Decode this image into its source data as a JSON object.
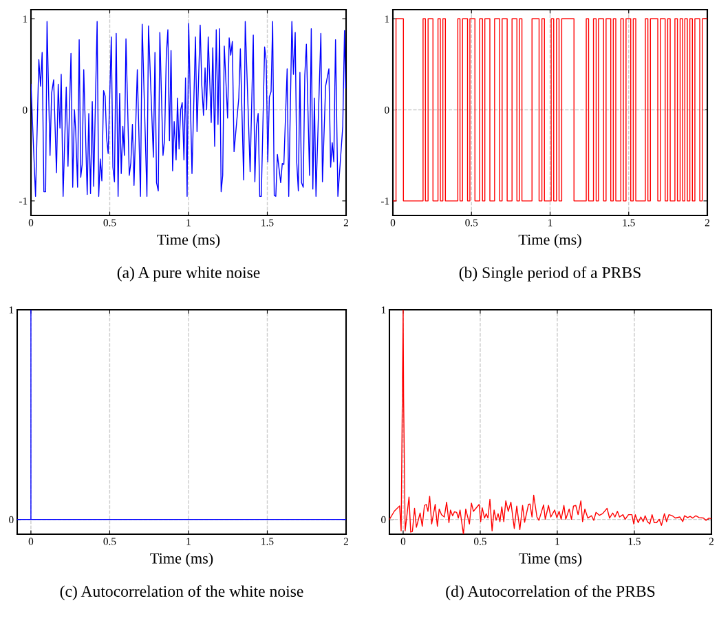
{
  "chart_data": [
    {
      "type": "line",
      "title": "(a) A pure white noise",
      "xlabel": "Time (ms)",
      "color": "#0000ff",
      "xlim": [
        0,
        2
      ],
      "ylim": [
        -1.16,
        1.1
      ],
      "xticks": [
        0,
        0.5,
        1,
        1.5,
        2
      ],
      "yticks": [
        -1,
        0,
        1
      ],
      "grid": "x",
      "ref_lines": [
        {
          "axis": "y",
          "value": 0,
          "color": "#cccccc",
          "line_style": "dashed"
        }
      ],
      "x": [
        0,
        0.029,
        0.05,
        0.061,
        0.071,
        0.082,
        0.093,
        0.102,
        0.121,
        0.131,
        0.144,
        0.162,
        0.173,
        0.184,
        0.192,
        0.204,
        0.224,
        0.235,
        0.254,
        0.265,
        0.276,
        0.284,
        0.296,
        0.306,
        0.316,
        0.325,
        0.335,
        0.357,
        0.367,
        0.378,
        0.389,
        0.398,
        0.42,
        0.43,
        0.44,
        0.45,
        0.461,
        0.471,
        0.48,
        0.49,
        0.51,
        0.52,
        0.53,
        0.541,
        0.553,
        0.563,
        0.573,
        0.583,
        0.593,
        0.603,
        0.624,
        0.634,
        0.644,
        0.654,
        0.675,
        0.695,
        0.706,
        0.736,
        0.746,
        0.777,
        0.787,
        0.797,
        0.808,
        0.818,
        0.838,
        0.848,
        0.859,
        0.869,
        0.879,
        0.889,
        0.899,
        0.909,
        0.921,
        0.93,
        0.94,
        0.95,
        0.96,
        0.971,
        0.981,
        0.991,
        1.001,
        1.022,
        1.044,
        1.054,
        1.074,
        1.084,
        1.095,
        1.105,
        1.115,
        1.125,
        1.144,
        1.154,
        1.166,
        1.176,
        1.187,
        1.197,
        1.207,
        1.217,
        1.227,
        1.248,
        1.258,
        1.268,
        1.278,
        1.289,
        1.319,
        1.329,
        1.35,
        1.36,
        1.391,
        1.411,
        1.421,
        1.431,
        1.442,
        1.452,
        1.462,
        1.483,
        1.493,
        1.503,
        1.513,
        1.524,
        1.534,
        1.544,
        1.554,
        1.564,
        1.585,
        1.595,
        1.605,
        1.626,
        1.636,
        1.656,
        1.666,
        1.677,
        1.687,
        1.697,
        1.707,
        1.717,
        1.728,
        1.738,
        1.748,
        1.768,
        1.779,
        1.789,
        1.799,
        1.809,
        1.83,
        1.84,
        1.85,
        1.87,
        1.891,
        1.902,
        1.912,
        1.922,
        1.933,
        1.948,
        1.979,
        1.99,
        1.997
      ],
      "values": [
        0.28,
        -0.95,
        0.55,
        0.26,
        0.63,
        -0.9,
        -0.9,
        0.97,
        -0.5,
        0.18,
        0.33,
        -0.69,
        0.28,
        -0.2,
        0.39,
        -0.95,
        0.25,
        -0.62,
        0.62,
        -0.85,
        0,
        -0.23,
        -0.85,
        0.77,
        -0.74,
        -0.6,
        0.44,
        -0.93,
        -0.04,
        -0.92,
        0.09,
        -0.84,
        0.97,
        -0.95,
        -0.54,
        -0.78,
        0.21,
        0.15,
        -0.31,
        -0.48,
        0.8,
        -0.63,
        -0.79,
        0.84,
        -0.95,
        0.18,
        -0.7,
        -0.18,
        -0.5,
        0.78,
        -0.72,
        -0.58,
        -0.16,
        -0.83,
        0.44,
        -0.95,
        0.94,
        -0.95,
        0.92,
        -0.52,
        0.63,
        -0.8,
        -0.89,
        0.85,
        -0.5,
        -0.33,
        0.6,
        0.88,
        -0.34,
        0.65,
        -0.67,
        -0.13,
        -0.55,
        0.13,
        -0.43,
        0,
        0.08,
        -0.55,
        0.35,
        -0.95,
        0.95,
        -0.7,
        0.8,
        -0.24,
        0.93,
        0.28,
        -0.06,
        0.46,
        0,
        0.8,
        -0.14,
        0.68,
        -0.4,
        0.88,
        -0.16,
        0.89,
        -0.9,
        -0.72,
        0.7,
        -0.09,
        0.79,
        0.6,
        0.75,
        -0.46,
        0.13,
        0.67,
        -0.77,
        0.97,
        -0.68,
        0.82,
        -0.79,
        -0.19,
        -0.04,
        -0.95,
        -0.95,
        0.69,
        0.54,
        -0.57,
        0.14,
        0.2,
        0.97,
        -0.94,
        -0.95,
        -0.49,
        -0.8,
        -0.59,
        -0.6,
        0.45,
        -0.95,
        0.97,
        0.39,
        0.85,
        -0.58,
        -0.89,
        0.41,
        -0.8,
        -0.85,
        0.38,
        0.72,
        -0.72,
        0.89,
        -0.87,
        0.13,
        -0.95,
        0.26,
        0.84,
        -0.79,
        0.26,
        0.45,
        -0.63,
        -0.36,
        -0.57,
        0.77,
        -0.95,
        -0.18,
        0.87,
        0.24
      ]
    },
    {
      "type": "step",
      "title": "(b) Single period of a PRBS",
      "xlabel": "Time (ms)",
      "color": "#ff0000",
      "xlim": [
        0,
        2
      ],
      "ylim": [
        -1.16,
        1.1
      ],
      "xticks": [
        0,
        0.5,
        1,
        1.5,
        2
      ],
      "yticks": [
        -1,
        0,
        1
      ],
      "grid": "x",
      "ref_lines": [
        {
          "axis": "y",
          "value": 0,
          "color": "#cccccc",
          "line_style": "dashed"
        }
      ],
      "x": [
        0,
        0.02,
        0.067,
        0.192,
        0.207,
        0.224,
        0.255,
        0.287,
        0.302,
        0.318,
        0.334,
        0.413,
        0.427,
        0.443,
        0.475,
        0.49,
        0.522,
        0.552,
        0.57,
        0.585,
        0.617,
        0.647,
        0.679,
        0.695,
        0.727,
        0.758,
        0.789,
        0.805,
        0.821,
        0.885,
        0.93,
        0.948,
        0.964,
        1.007,
        1.023,
        1.041,
        1.057,
        1.074,
        1.152,
        1.23,
        1.245,
        1.276,
        1.293,
        1.308,
        1.34,
        1.356,
        1.386,
        1.402,
        1.418,
        1.45,
        1.466,
        1.483,
        1.513,
        1.529,
        1.545,
        1.606,
        1.622,
        1.638,
        1.685,
        1.701,
        1.732,
        1.748,
        1.764,
        1.794,
        1.81,
        1.827,
        1.843,
        1.857,
        1.873,
        1.889,
        1.905,
        1.921,
        1.952,
        1.968,
        2.0
      ],
      "values": [
        -1,
        1,
        -1,
        1,
        -1,
        1,
        -1,
        1,
        -1,
        1,
        -1,
        1,
        -1,
        1,
        -1,
        1,
        -1,
        1,
        -1,
        1,
        -1,
        1,
        -1,
        1,
        -1,
        1,
        -1,
        1,
        -1,
        1,
        -1,
        1,
        -1,
        1,
        -1,
        1,
        -1,
        1,
        -1,
        1,
        -1,
        1,
        -1,
        1,
        -1,
        1,
        -1,
        1,
        -1,
        1,
        -1,
        1,
        -1,
        1,
        -1,
        1,
        -1,
        1,
        -1,
        1,
        -1,
        1,
        -1,
        1,
        -1,
        1,
        -1,
        1,
        -1,
        1,
        -1,
        1,
        -1,
        1,
        1
      ]
    },
    {
      "type": "line",
      "title": "(c) Autocorrelation of the white noise",
      "xlabel": "Time (ms)",
      "color": "#0000ff",
      "xlim": [
        -0.087,
        2
      ],
      "ylim": [
        -0.07,
        1
      ],
      "xticks": [
        0,
        0.5,
        1,
        1.5,
        2
      ],
      "yticks": [
        0,
        1
      ],
      "grid": "x",
      "ref_lines": [
        {
          "axis": "y",
          "value": 0,
          "color": "#cccccc",
          "line_style": "dashed"
        }
      ],
      "x": [
        -0.087,
        0,
        0,
        0,
        2.0
      ],
      "values": [
        0,
        0,
        1,
        0,
        0
      ]
    },
    {
      "type": "line",
      "title": "(d) Autocorrelation of the PRBS",
      "xlabel": "Time (ms)",
      "color": "#ff0000",
      "xlim": [
        -0.089,
        2
      ],
      "ylim": [
        -0.07,
        1
      ],
      "xticks": [
        0,
        0.5,
        1,
        1.5,
        2
      ],
      "yticks": [
        0,
        1
      ],
      "grid": "x",
      "ref_lines": [
        {
          "axis": "y",
          "value": 0,
          "color": "#cccccc",
          "line_style": "dashed"
        }
      ],
      "x": [
        -0.089,
        -0.057,
        -0.023,
        -0.013,
        0,
        0.003,
        0.013,
        0.038,
        0.049,
        0.06,
        0.074,
        0.086,
        0.11,
        0.124,
        0.138,
        0.15,
        0.161,
        0.172,
        0.185,
        0.208,
        0.222,
        0.234,
        0.249,
        0.267,
        0.282,
        0.297,
        0.307,
        0.321,
        0.333,
        0.347,
        0.358,
        0.369,
        0.391,
        0.406,
        0.43,
        0.443,
        0.456,
        0.493,
        0.503,
        0.513,
        0.528,
        0.539,
        0.55,
        0.563,
        0.577,
        0.59,
        0.603,
        0.616,
        0.628,
        0.64,
        0.653,
        0.666,
        0.682,
        0.699,
        0.721,
        0.737,
        0.757,
        0.775,
        0.788,
        0.813,
        0.823,
        0.836,
        0.847,
        0.868,
        0.881,
        0.911,
        0.922,
        0.943,
        0.958,
        0.983,
        0.997,
        1.012,
        1.025,
        1.043,
        1.055,
        1.077,
        1.092,
        1.105,
        1.12,
        1.135,
        1.153,
        1.164,
        1.179,
        1.198,
        1.222,
        1.237,
        1.251,
        1.273,
        1.294,
        1.323,
        1.339,
        1.36,
        1.374,
        1.39,
        1.404,
        1.426,
        1.44,
        1.462,
        1.484,
        1.496,
        1.506,
        1.525,
        1.542,
        1.557,
        1.57,
        1.585,
        1.6,
        1.615,
        1.629,
        1.644,
        1.661,
        1.676,
        1.695,
        1.709,
        1.724,
        1.746,
        1.766,
        1.795,
        1.814,
        1.825,
        1.846,
        1.862,
        1.879,
        1.898,
        1.92,
        1.948,
        1.965,
        1.984,
        1.996
      ],
      "values": [
        0,
        0.04,
        0.065,
        -0.054,
        1,
        0.58,
        -0.054,
        0.107,
        -0.06,
        -0.057,
        0.053,
        -0.037,
        0.031,
        -0.032,
        0.067,
        0.072,
        0.039,
        0.111,
        -0.021,
        0.072,
        -0.032,
        0.05,
        0.023,
        0.012,
        0.083,
        -0.015,
        0.045,
        0.018,
        0.037,
        0.034,
        0.007,
        0.045,
        -0.07,
        0.05,
        -0.021,
        0.078,
        0.039,
        0.072,
        -0.01,
        0.056,
        0.007,
        0.028,
        0.007,
        0.096,
        -0.054,
        0.045,
        -0.004,
        0.028,
        -0.01,
        0.061,
        -0.01,
        0.089,
        0.039,
        0.083,
        -0.043,
        0.064,
        -0.048,
        0.067,
        -0.013,
        0.072,
        0.074,
        0.012,
        0.116,
        0.012,
        -0.004,
        0.07,
        0.001,
        0.067,
        0.012,
        0.045,
        0.009,
        0.039,
        0.001,
        0.067,
        0.001,
        0.05,
        0.001,
        0.064,
        0.067,
        0.023,
        0.089,
        -0.01,
        0.05,
        0.007,
        0.018,
        -0.004,
        0.034,
        0.02,
        0.028,
        0.053,
        0.007,
        0.031,
        0.012,
        0.039,
        0.012,
        0.023,
        0.001,
        0.023,
        0.023,
        -0.021,
        0.023,
        -0.015,
        0.012,
        -0.01,
        0.018,
        -0.01,
        -0.021,
        0.023,
        -0.015,
        -0.015,
        0.001,
        -0.028,
        0.028,
        -0.01,
        0.023,
        0.018,
        0.007,
        0.012,
        -0.01,
        0.018,
        0.009,
        0.015,
        0.007,
        0.018,
        0.009,
        0.007,
        -0.004,
        0.007,
        0.004
      ]
    }
  ]
}
